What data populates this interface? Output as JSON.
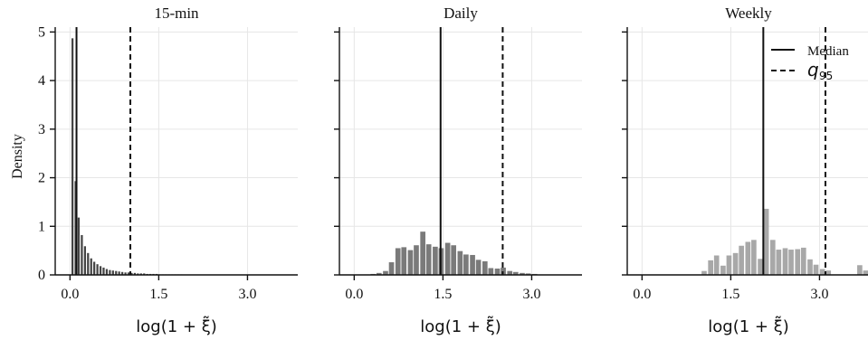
{
  "chart_data": {
    "type": "bar",
    "ylabel": "Density",
    "xlabel": "log(1 + ξ̃)",
    "xlim": [
      -0.25,
      3.85
    ],
    "ylim": [
      0,
      5.1
    ],
    "xticks": [
      "0.0",
      "1.5",
      "3.0"
    ],
    "xtick_values": [
      0,
      1.5,
      3.0
    ],
    "yticks": [
      "0",
      "1",
      "2",
      "3",
      "4",
      "5"
    ],
    "ytick_values": [
      0,
      1,
      2,
      3,
      4,
      5
    ],
    "grid": true,
    "legend": {
      "position": "top-right",
      "panel": 2,
      "entries": [
        "Median",
        "q95"
      ]
    },
    "legend_labels": {
      "median": "Median",
      "q95_main": "q",
      "q95_sub": "95"
    },
    "panels": [
      {
        "title": "15-min",
        "bar_color": "#444444",
        "bin_width": 0.0526,
        "x": [
          0.042,
          0.095,
          0.147,
          0.2,
          0.253,
          0.305,
          0.358,
          0.41,
          0.463,
          0.516,
          0.568,
          0.621,
          0.674,
          0.726,
          0.779,
          0.831,
          0.884,
          0.937,
          0.989,
          1.042,
          1.095,
          1.147,
          1.2,
          1.253,
          1.305,
          1.358,
          1.41,
          1.463,
          1.516,
          1.568,
          1.621,
          1.674,
          1.726,
          1.779,
          1.831,
          1.884
        ],
        "values": [
          4.87,
          1.93,
          1.18,
          0.82,
          0.59,
          0.45,
          0.34,
          0.27,
          0.22,
          0.18,
          0.15,
          0.12,
          0.1,
          0.09,
          0.08,
          0.07,
          0.06,
          0.05,
          0.05,
          0.04,
          0.04,
          0.03,
          0.03,
          0.03,
          0.02,
          0.02,
          0.02,
          0.02,
          0.01,
          0.01,
          0.01,
          0.01,
          0.01,
          0.01,
          0.01,
          0.01
        ],
        "median": 0.11,
        "q95": 1.02
      },
      {
        "title": "Daily",
        "bar_color": "#7a7a7a",
        "bin_width": 0.105,
        "x": [
          0.21,
          0.32,
          0.42,
          0.53,
          0.63,
          0.74,
          0.84,
          0.95,
          1.05,
          1.16,
          1.26,
          1.37,
          1.47,
          1.58,
          1.68,
          1.79,
          1.89,
          2.0,
          2.1,
          2.21,
          2.31,
          2.42,
          2.52,
          2.63,
          2.73,
          2.84,
          2.94,
          3.05,
          3.15
        ],
        "values": [
          0.01,
          0.02,
          0.04,
          0.08,
          0.26,
          0.55,
          0.57,
          0.51,
          0.61,
          0.89,
          0.63,
          0.58,
          0.55,
          0.66,
          0.61,
          0.49,
          0.42,
          0.41,
          0.31,
          0.28,
          0.14,
          0.13,
          0.15,
          0.08,
          0.06,
          0.04,
          0.03,
          0.02,
          0.01
        ],
        "median": 1.46,
        "q95": 2.51
      },
      {
        "title": "Weekly",
        "bar_color": "#a8a8a8",
        "bin_width": 0.105,
        "x": [
          1.05,
          1.16,
          1.26,
          1.37,
          1.47,
          1.58,
          1.68,
          1.79,
          1.89,
          2.0,
          2.1,
          2.21,
          2.31,
          2.42,
          2.52,
          2.63,
          2.73,
          2.84,
          2.94,
          3.05,
          3.15,
          3.26,
          3.36,
          3.47,
          3.57,
          3.68,
          3.78
        ],
        "values": [
          0.08,
          0.3,
          0.4,
          0.19,
          0.4,
          0.45,
          0.6,
          0.68,
          0.72,
          0.33,
          1.36,
          0.72,
          0.52,
          0.55,
          0.52,
          0.53,
          0.56,
          0.32,
          0.21,
          0.12,
          0.09,
          0.0,
          0.0,
          0.0,
          0.0,
          0.2,
          0.09
        ],
        "median": 2.05,
        "q95": 3.1
      }
    ]
  }
}
